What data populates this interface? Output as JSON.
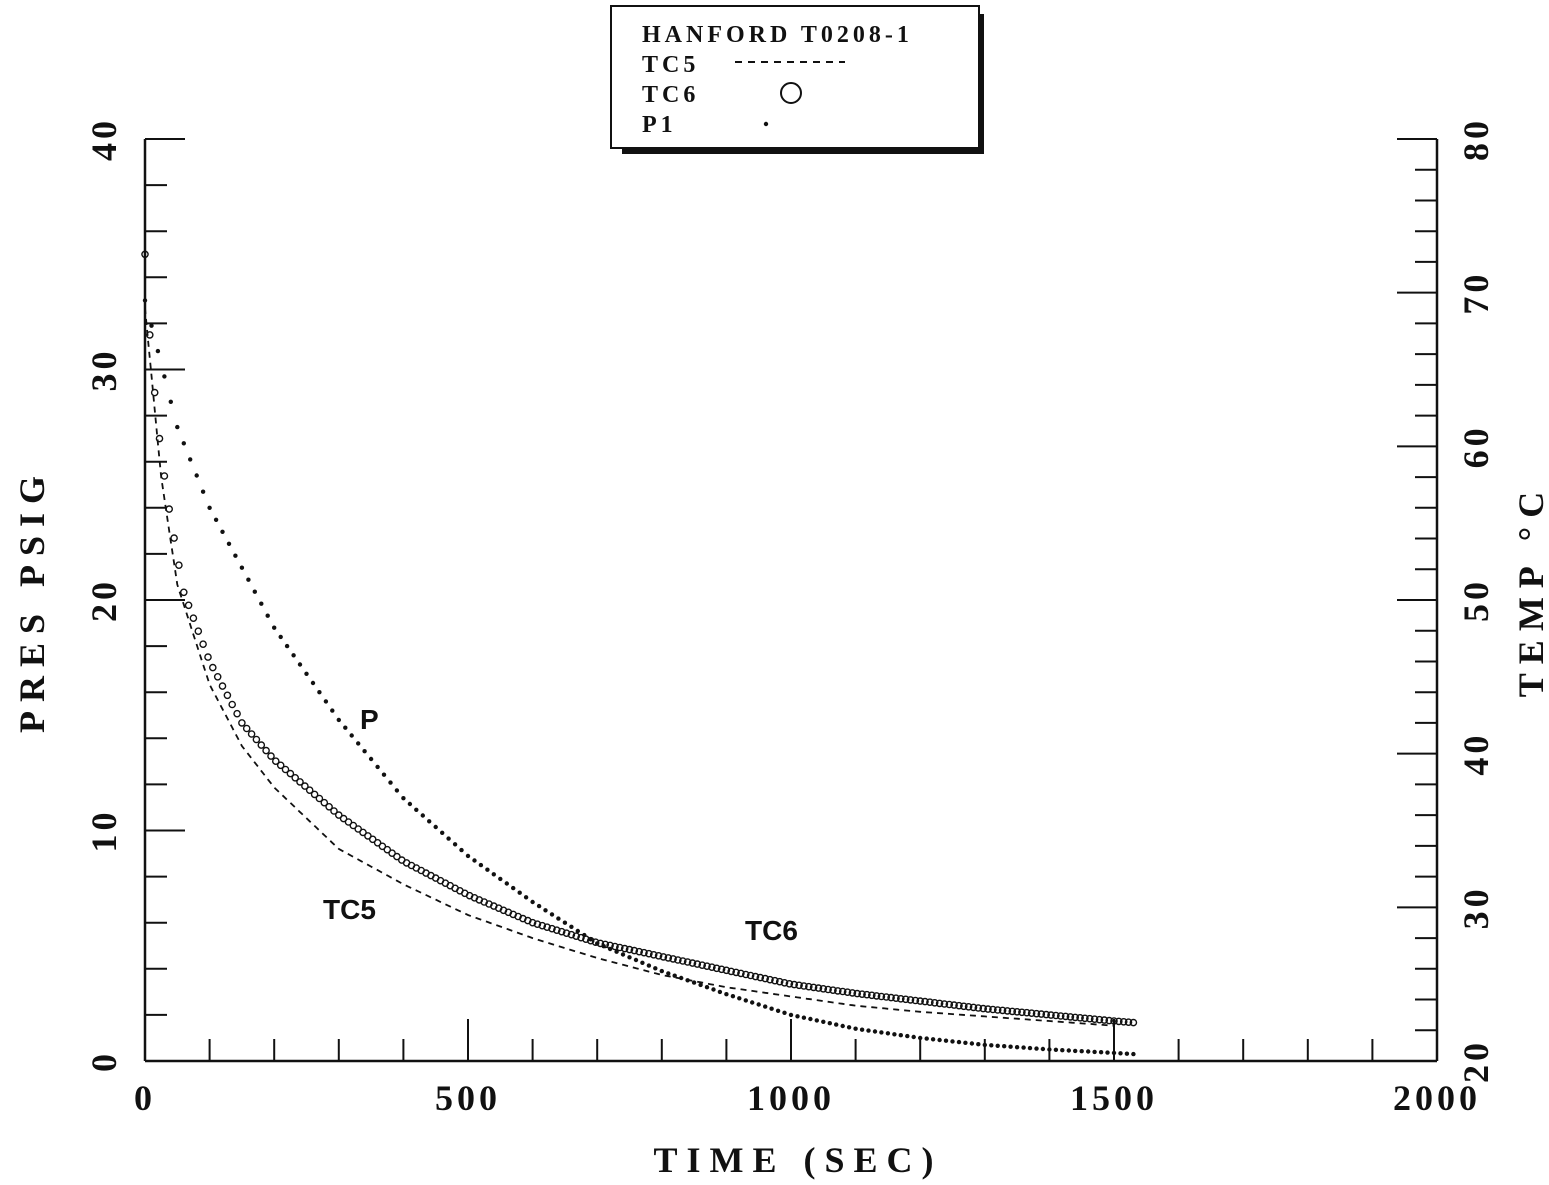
{
  "chart_data": {
    "type": "line",
    "title": "HANFORD T0208-1",
    "xlabel": "TIME (SEC)",
    "ylabel_left": "PRES PSIG",
    "ylabel_right": "TEMP °C",
    "xlim": [
      0,
      2000
    ],
    "ylim_left": [
      0,
      40
    ],
    "ylim_right": [
      20,
      80
    ],
    "x_ticks": [
      "0",
      "500",
      "1000",
      "1500",
      "2000"
    ],
    "y_ticks_left": [
      "0",
      "10",
      "20",
      "30",
      "40"
    ],
    "y_ticks_right": [
      "20",
      "30",
      "40",
      "50",
      "60",
      "70",
      "80"
    ],
    "grid": false,
    "legend_position": "top-center",
    "legend": [
      {
        "name": "TC5",
        "marker": "dashed-line"
      },
      {
        "name": "TC6",
        "marker": "circle"
      },
      {
        "name": "P1",
        "marker": "dot"
      }
    ],
    "annotations": [
      "P",
      "TC5",
      "TC6"
    ],
    "series": [
      {
        "name": "P1",
        "axis": "left",
        "annotation": "P",
        "x": [
          0,
          50,
          100,
          200,
          300,
          400,
          500,
          600,
          700,
          800,
          900,
          1000,
          1100,
          1200,
          1300,
          1400,
          1500,
          1530
        ],
        "y": [
          33,
          27.5,
          24,
          18.8,
          14.8,
          11.4,
          8.9,
          6.9,
          5.1,
          3.9,
          2.9,
          2.0,
          1.4,
          1.0,
          0.7,
          0.5,
          0.35,
          0.3
        ]
      },
      {
        "name": "TC5",
        "axis": "right",
        "annotation": "TC5",
        "x": [
          0,
          25,
          50,
          100,
          150,
          200,
          300,
          400,
          500,
          600,
          700,
          800,
          900,
          1000,
          1100,
          1200,
          1300,
          1400,
          1500
        ],
        "y": [
          69,
          58,
          51,
          44.5,
          40.5,
          37.8,
          33.8,
          31.5,
          29.5,
          28,
          26.7,
          25.6,
          24.8,
          24.2,
          23.6,
          23.2,
          22.9,
          22.6,
          22.3
        ]
      },
      {
        "name": "TC6",
        "axis": "right",
        "annotation": "TC6",
        "x": [
          0,
          10,
          25,
          40,
          60,
          100,
          150,
          200,
          300,
          400,
          500,
          600,
          700,
          800,
          900,
          1000,
          1100,
          1200,
          1300,
          1400,
          1500,
          1530
        ],
        "y": [
          72.5,
          65.5,
          59.5,
          55.2,
          50.5,
          46,
          42,
          39.6,
          36,
          33,
          30.8,
          29,
          27.7,
          26.8,
          25.9,
          25,
          24.4,
          23.9,
          23.4,
          23,
          22.6,
          22.5
        ]
      }
    ]
  }
}
